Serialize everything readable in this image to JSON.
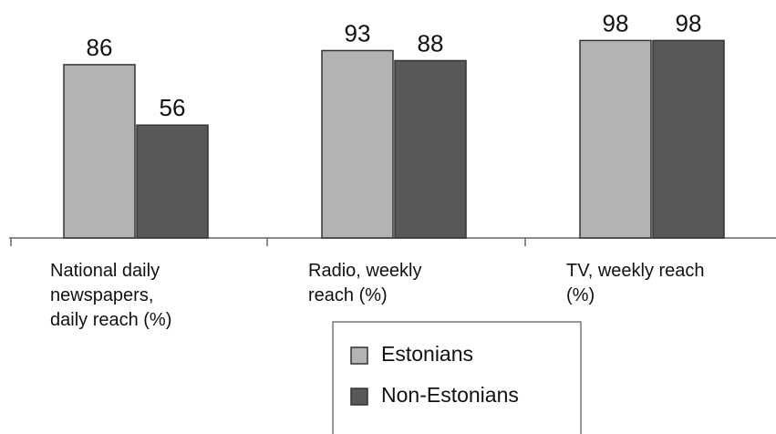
{
  "chart_data": {
    "type": "bar",
    "categories": [
      "National daily newspapers, daily reach (%)",
      "Radio, weekly reach (%)",
      "TV, weekly reach (%)"
    ],
    "series": [
      {
        "name": "Estonians",
        "color": "#b3b3b3",
        "values": [
          86,
          93,
          98
        ]
      },
      {
        "name": "Non-Estonians",
        "color": "#585858",
        "values": [
          56,
          88,
          98
        ]
      }
    ],
    "ylim": [
      0,
      100
    ]
  }
}
